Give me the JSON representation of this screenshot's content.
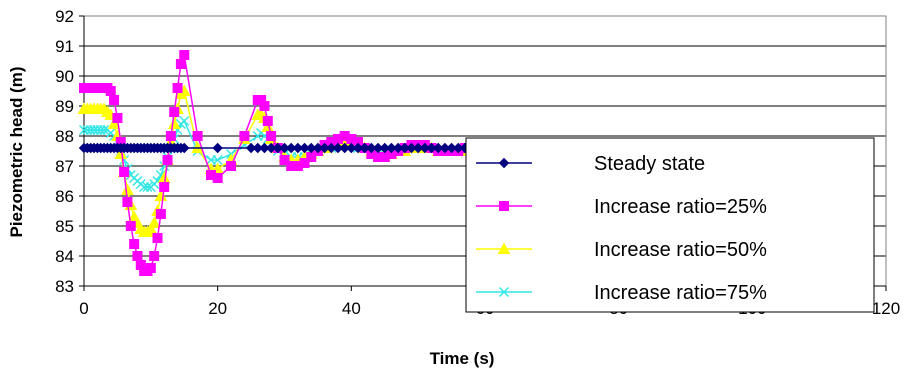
{
  "chart_data": {
    "type": "line",
    "title": "",
    "xlabel": "Time (s)",
    "ylabel": "Piezometric head (m)",
    "xlim": [
      0,
      120
    ],
    "ylim": [
      83,
      92
    ],
    "x_ticks": [
      0,
      20,
      40,
      60,
      80,
      100,
      120
    ],
    "y_ticks": [
      83,
      84,
      85,
      86,
      87,
      88,
      89,
      90,
      91,
      92
    ],
    "grid": "horizontal",
    "legend_position": "bottom-right",
    "series": [
      {
        "name": "Steady state",
        "color": "#000080",
        "marker": "diamond",
        "x": [
          0,
          0.5,
          1,
          1.5,
          2,
          2.5,
          3,
          3.5,
          4,
          4.5,
          5,
          5.5,
          6,
          6.5,
          7,
          7.5,
          8,
          8.5,
          9,
          9.5,
          10,
          10.5,
          11,
          11.5,
          12,
          12.5,
          13,
          13.5,
          14,
          14.5,
          15,
          20,
          25,
          26,
          27,
          28,
          29,
          30,
          31,
          32,
          33,
          34,
          35,
          36,
          37,
          38,
          39,
          40,
          41,
          42,
          43,
          44,
          45,
          46,
          47,
          48,
          49,
          50,
          51,
          52,
          53,
          54,
          55,
          56,
          57,
          58,
          59,
          60,
          61,
          62,
          63,
          64
        ],
        "y": [
          87.6,
          87.6,
          87.6,
          87.6,
          87.6,
          87.6,
          87.6,
          87.6,
          87.6,
          87.6,
          87.6,
          87.6,
          87.6,
          87.6,
          87.6,
          87.6,
          87.6,
          87.6,
          87.6,
          87.6,
          87.6,
          87.6,
          87.6,
          87.6,
          87.6,
          87.6,
          87.6,
          87.6,
          87.6,
          87.6,
          87.6,
          87.6,
          87.6,
          87.6,
          87.6,
          87.6,
          87.6,
          87.6,
          87.6,
          87.6,
          87.6,
          87.6,
          87.6,
          87.6,
          87.6,
          87.6,
          87.6,
          87.6,
          87.6,
          87.6,
          87.6,
          87.6,
          87.6,
          87.6,
          87.6,
          87.6,
          87.6,
          87.6,
          87.6,
          87.6,
          87.6,
          87.6,
          87.6,
          87.6,
          87.6,
          87.6,
          87.6,
          87.6,
          87.6,
          87.6,
          87.6,
          87.6
        ]
      },
      {
        "name": "Increase ratio=25%",
        "color": "#ff00ff",
        "marker": "square",
        "x": [
          0,
          0.5,
          1,
          1.5,
          2,
          2.5,
          3,
          3.5,
          4,
          4.5,
          5,
          5.5,
          6,
          6.5,
          7,
          7.5,
          8,
          8.5,
          9,
          9.5,
          10,
          10.5,
          11,
          11.5,
          12,
          12.5,
          13,
          13.5,
          14,
          14.5,
          15,
          17,
          19,
          20,
          22,
          24,
          26,
          26.5,
          27,
          27.5,
          28,
          29,
          30,
          31,
          32,
          33,
          34,
          35,
          36,
          37,
          38,
          39,
          40,
          41,
          42,
          43,
          44,
          45,
          46,
          47,
          48,
          49,
          50,
          51,
          52,
          53,
          54,
          55,
          56,
          57,
          58,
          59,
          60,
          61,
          62,
          63,
          64
        ],
        "y": [
          89.6,
          89.6,
          89.6,
          89.6,
          89.6,
          89.6,
          89.6,
          89.6,
          89.5,
          89.2,
          88.6,
          87.8,
          86.8,
          85.8,
          85.0,
          84.4,
          84.0,
          83.7,
          83.5,
          83.5,
          83.6,
          84.0,
          84.6,
          85.4,
          86.3,
          87.2,
          88.0,
          88.8,
          89.6,
          90.4,
          90.7,
          88.0,
          86.7,
          86.6,
          87.0,
          88.0,
          89.2,
          89.2,
          89.0,
          88.5,
          88.0,
          87.6,
          87.2,
          87.0,
          87.0,
          87.1,
          87.3,
          87.5,
          87.7,
          87.8,
          87.9,
          88.0,
          87.9,
          87.8,
          87.6,
          87.4,
          87.3,
          87.3,
          87.4,
          87.5,
          87.6,
          87.7,
          87.7,
          87.7,
          87.6,
          87.5,
          87.5,
          87.5,
          87.5,
          87.6,
          87.6,
          87.6,
          87.7,
          87.7,
          87.7,
          87.7,
          87.6
        ]
      },
      {
        "name": "Increase ratio=50%",
        "color": "#ffff00",
        "marker": "triangle",
        "x": [
          0,
          0.5,
          1,
          1.5,
          2,
          2.5,
          3,
          3.5,
          4,
          4.5,
          5,
          5.5,
          6,
          6.5,
          7,
          7.5,
          8,
          8.5,
          9,
          9.5,
          10,
          10.5,
          11,
          11.5,
          12,
          12.5,
          13,
          13.5,
          14,
          14.5,
          15,
          17,
          19,
          20,
          22,
          24,
          26,
          26.5,
          27,
          27.5,
          28,
          29,
          30,
          31,
          32,
          33,
          34,
          35,
          36,
          37,
          38,
          39,
          40,
          41,
          42,
          43,
          44,
          45,
          46,
          47,
          48,
          49,
          50,
          51,
          52,
          53,
          54,
          55,
          56,
          57,
          58,
          59,
          60
        ],
        "y": [
          88.9,
          88.9,
          88.9,
          88.9,
          88.9,
          88.9,
          88.9,
          88.8,
          88.7,
          88.4,
          88.0,
          87.4,
          86.8,
          86.2,
          85.7,
          85.3,
          85.1,
          84.9,
          84.8,
          84.8,
          84.9,
          85.1,
          85.5,
          86.0,
          86.6,
          87.2,
          87.8,
          88.4,
          88.9,
          89.4,
          89.5,
          87.6,
          86.9,
          86.9,
          87.2,
          87.9,
          88.7,
          88.7,
          88.6,
          88.3,
          87.9,
          87.6,
          87.3,
          87.2,
          87.2,
          87.3,
          87.4,
          87.5,
          87.6,
          87.7,
          87.8,
          87.8,
          87.8,
          87.7,
          87.6,
          87.5,
          87.4,
          87.4,
          87.4,
          87.5,
          87.5,
          87.6,
          87.6,
          87.6,
          87.6,
          87.5,
          87.5,
          87.5,
          87.5,
          87.5,
          87.5,
          87.6,
          87.6
        ]
      },
      {
        "name": "Increase ratio=75%",
        "color": "#33e6e6",
        "marker": "x",
        "x": [
          0,
          0.5,
          1,
          1.5,
          2,
          2.5,
          3,
          3.5,
          4,
          4.5,
          5,
          5.5,
          6,
          6.5,
          7,
          7.5,
          8,
          8.5,
          9,
          9.5,
          10,
          10.5,
          11,
          11.5,
          12,
          12.5,
          13,
          13.5,
          14,
          14.5,
          15,
          17,
          19,
          20,
          22,
          24,
          26,
          26.5,
          27,
          27.5,
          28,
          29,
          30,
          31,
          32,
          33,
          34,
          35,
          36,
          37,
          38,
          39,
          40,
          41,
          42,
          43,
          44,
          45,
          46,
          47,
          48,
          49,
          50,
          51,
          52,
          53,
          54,
          55,
          56,
          57,
          58,
          59,
          60
        ],
        "y": [
          88.2,
          88.2,
          88.2,
          88.2,
          88.2,
          88.2,
          88.2,
          88.2,
          88.1,
          88.0,
          87.8,
          87.5,
          87.2,
          86.9,
          86.7,
          86.6,
          86.5,
          86.4,
          86.3,
          86.3,
          86.3,
          86.4,
          86.5,
          86.7,
          87.0,
          87.3,
          87.6,
          87.9,
          88.2,
          88.4,
          88.5,
          87.5,
          87.2,
          87.2,
          87.4,
          87.7,
          88.0,
          88.1,
          88.0,
          87.9,
          87.7,
          87.5,
          87.4,
          87.3,
          87.3,
          87.3,
          87.4,
          87.5,
          87.6,
          87.6,
          87.7,
          87.7,
          87.7,
          87.6,
          87.6,
          87.5,
          87.5,
          87.5,
          87.5,
          87.5,
          87.5,
          87.6,
          87.6,
          87.6,
          87.6,
          87.5,
          87.5,
          87.5,
          87.5,
          87.5,
          87.5,
          87.6,
          87.6
        ]
      }
    ]
  }
}
